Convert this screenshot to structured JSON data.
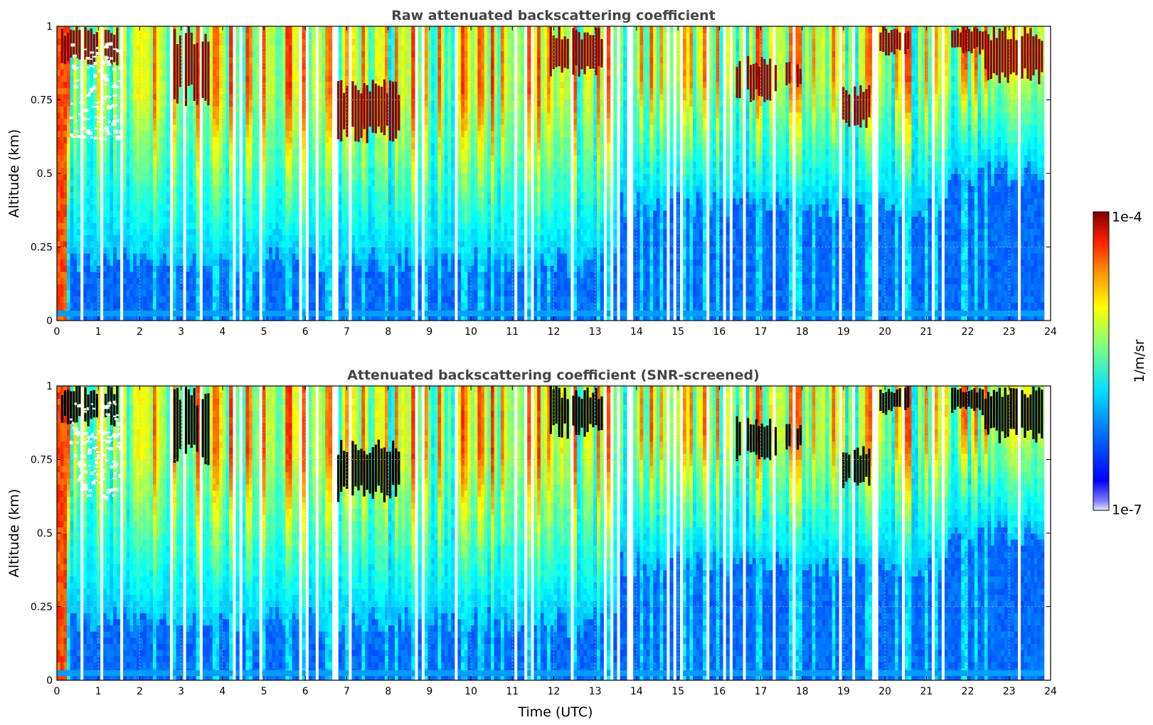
{
  "chart_data": [
    {
      "type": "heatmap",
      "title": "Raw attenuated backscattering coefficient",
      "xlabel": "",
      "ylabel": "Altitude (km)",
      "xlim": [
        0,
        24
      ],
      "ylim": [
        0,
        1
      ],
      "xticks": [
        "0",
        "1",
        "2",
        "3",
        "4",
        "5",
        "6",
        "7",
        "8",
        "9",
        "10",
        "11",
        "12",
        "13",
        "14",
        "15",
        "16",
        "17",
        "18",
        "19",
        "20",
        "21",
        "22",
        "23",
        "24"
      ],
      "yticks": [
        "0",
        "0.25",
        "0.5",
        "0.75",
        "1"
      ],
      "grid": true,
      "cloud_layers": [
        {
          "x": [
            0.1,
            1.5
          ],
          "y": [
            0.86,
            1.0
          ]
        },
        {
          "x": [
            2.75,
            3.7
          ],
          "y": [
            0.72,
            1.0
          ]
        },
        {
          "x": [
            6.7,
            8.3
          ],
          "y": [
            0.6,
            0.82
          ]
        },
        {
          "x": [
            11.9,
            13.2
          ],
          "y": [
            0.82,
            1.0
          ]
        },
        {
          "x": [
            16.4,
            17.4
          ],
          "y": [
            0.74,
            0.9
          ]
        },
        {
          "x": [
            17.6,
            18.0
          ],
          "y": [
            0.78,
            0.88
          ]
        },
        {
          "x": [
            18.9,
            19.8
          ],
          "y": [
            0.65,
            0.8
          ]
        },
        {
          "x": [
            19.8,
            20.6
          ],
          "y": [
            0.9,
            1.0
          ]
        },
        {
          "x": [
            21.6,
            22.4
          ],
          "y": [
            0.9,
            1.0
          ]
        },
        {
          "x": [
            22.4,
            23.9
          ],
          "y": [
            0.8,
            1.0
          ]
        }
      ]
    },
    {
      "type": "heatmap",
      "title": "Attenuated backscattering coefficient (SNR-screened)",
      "xlabel": "Time (UTC)",
      "ylabel": "Altitude (km)",
      "xlim": [
        0,
        24
      ],
      "ylim": [
        0,
        1
      ],
      "xticks": [
        "0",
        "1",
        "2",
        "3",
        "4",
        "5",
        "6",
        "7",
        "8",
        "9",
        "10",
        "11",
        "12",
        "13",
        "14",
        "15",
        "16",
        "17",
        "18",
        "19",
        "20",
        "21",
        "22",
        "23",
        "24"
      ],
      "yticks": [
        "0",
        "0.25",
        "0.5",
        "0.75",
        "1"
      ],
      "grid": true,
      "cloud_layers": [
        {
          "x": [
            0.1,
            1.5
          ],
          "y": [
            0.86,
            1.0
          ]
        },
        {
          "x": [
            2.75,
            3.7
          ],
          "y": [
            0.72,
            1.0
          ]
        },
        {
          "x": [
            6.7,
            8.3
          ],
          "y": [
            0.6,
            0.82
          ]
        },
        {
          "x": [
            11.9,
            13.2
          ],
          "y": [
            0.82,
            1.0
          ]
        },
        {
          "x": [
            16.4,
            17.4
          ],
          "y": [
            0.74,
            0.9
          ]
        },
        {
          "x": [
            17.6,
            18.0
          ],
          "y": [
            0.78,
            0.88
          ]
        },
        {
          "x": [
            18.9,
            19.8
          ],
          "y": [
            0.65,
            0.8
          ]
        },
        {
          "x": [
            19.8,
            20.6
          ],
          "y": [
            0.9,
            1.0
          ]
        },
        {
          "x": [
            21.6,
            22.4
          ],
          "y": [
            0.9,
            1.0
          ]
        },
        {
          "x": [
            22.4,
            23.9
          ],
          "y": [
            0.8,
            1.0
          ]
        }
      ]
    }
  ],
  "colorbar": {
    "label": "1/m/sr",
    "max_label": "1e-4",
    "min_label": "1e-7",
    "colormap": "jet",
    "scale": "log"
  },
  "colors": {
    "background": "#ffffff",
    "title": "#444444",
    "grid": "#bbbbbb",
    "cloud_raw": "#8b0000",
    "cloud_screened": "#000000",
    "missing": "#ffffff"
  }
}
